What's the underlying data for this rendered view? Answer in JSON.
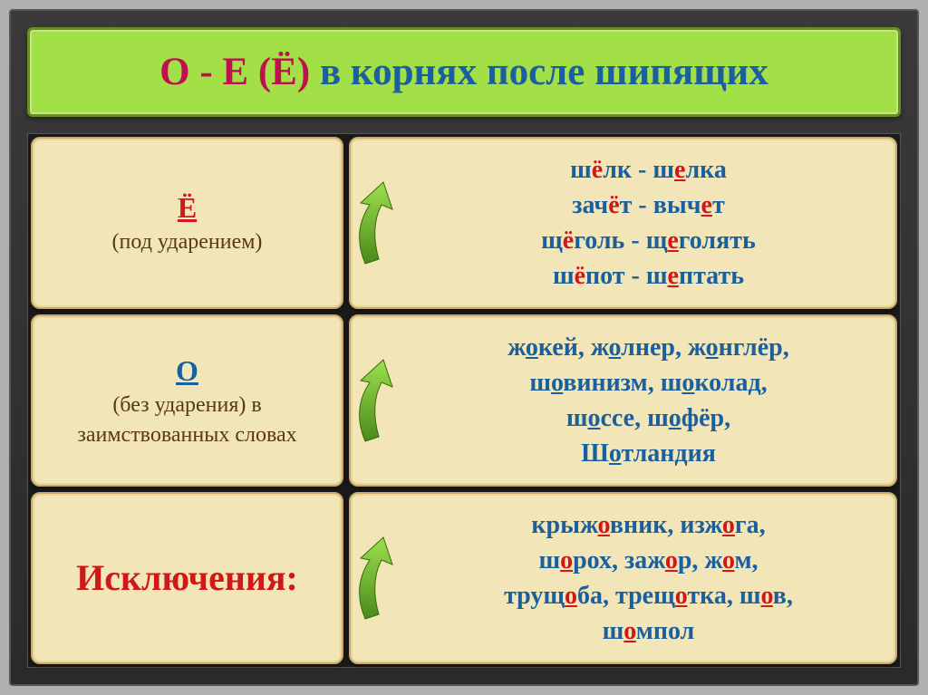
{
  "colors": {
    "frame_bg": "#2f2f2f",
    "title_bg": "#a3e048",
    "title_border": "#6b8e23",
    "cell_bg": "#f2e6b8",
    "cell_border": "#c9a86a",
    "red": "#d01818",
    "blue": "#1a5f9e",
    "brown": "#5a3a0a",
    "arrow_green": "#7cc93e",
    "arrow_dark": "#4a8a1a"
  },
  "title": {
    "part1": "О - Е (Ё)",
    "part2": " в корнях после шипящих"
  },
  "rows": [
    {
      "left_letter": "Ё",
      "left_letter_color": "red",
      "left_desc": "(под ударением)",
      "right_lines": [
        [
          [
            "ш",
            ""
          ],
          [
            "ё",
            "r"
          ],
          [
            "лк - ш",
            ""
          ],
          [
            "е",
            "ru"
          ],
          [
            "лка",
            ""
          ]
        ],
        [
          [
            "зач",
            ""
          ],
          [
            "ё",
            "r"
          ],
          [
            "т - выч",
            ""
          ],
          [
            "е",
            "ru"
          ],
          [
            "т",
            ""
          ]
        ],
        [
          [
            "щ",
            ""
          ],
          [
            "ё",
            "r"
          ],
          [
            "голь - щ",
            ""
          ],
          [
            "е",
            "ru"
          ],
          [
            "голять",
            ""
          ]
        ],
        [
          [
            "ш",
            ""
          ],
          [
            "ё",
            "r"
          ],
          [
            "пот - ш",
            ""
          ],
          [
            "е",
            "ru"
          ],
          [
            "птать",
            ""
          ]
        ]
      ]
    },
    {
      "left_letter": "О",
      "left_letter_color": "blue",
      "left_desc": "(без ударения) в заимствованных словах",
      "right_lines": [
        [
          [
            "ж",
            ""
          ],
          [
            "о",
            "bu"
          ],
          [
            "кей, ж",
            ""
          ],
          [
            "о",
            "bu"
          ],
          [
            "лнер, ж",
            ""
          ],
          [
            "о",
            "bu"
          ],
          [
            "нглёр,",
            ""
          ]
        ],
        [
          [
            "ш",
            ""
          ],
          [
            "о",
            "bu"
          ],
          [
            "винизм, ш",
            ""
          ],
          [
            "о",
            "bu"
          ],
          [
            "колад,",
            ""
          ]
        ],
        [
          [
            "ш",
            ""
          ],
          [
            "о",
            "bu"
          ],
          [
            "ссе, ш",
            ""
          ],
          [
            "о",
            "bu"
          ],
          [
            "фёр,",
            ""
          ]
        ],
        [
          [
            "Ш",
            ""
          ],
          [
            "о",
            "bu"
          ],
          [
            "тландия",
            ""
          ]
        ]
      ]
    },
    {
      "left_exception": "Исключения:",
      "right_lines": [
        [
          [
            "крыж",
            ""
          ],
          [
            "о",
            "ru"
          ],
          [
            "вник, изж",
            ""
          ],
          [
            "о",
            "ru"
          ],
          [
            "га,",
            ""
          ]
        ],
        [
          [
            "ш",
            ""
          ],
          [
            "о",
            "ru"
          ],
          [
            "рох, заж",
            ""
          ],
          [
            "о",
            "ru"
          ],
          [
            "р, ж",
            ""
          ],
          [
            "о",
            "ru"
          ],
          [
            "м,",
            ""
          ]
        ],
        [
          [
            "трущ",
            ""
          ],
          [
            "о",
            "ru"
          ],
          [
            "ба, трещ",
            ""
          ],
          [
            "о",
            "ru"
          ],
          [
            "тка, ш",
            ""
          ],
          [
            "о",
            "ru"
          ],
          [
            "в,",
            ""
          ]
        ],
        [
          [
            "ш",
            ""
          ],
          [
            "о",
            "ru"
          ],
          [
            "мпол",
            ""
          ]
        ]
      ]
    }
  ],
  "typography": {
    "title_fontsize": 43,
    "left_fontsize": 24,
    "left_letter_fontsize": 32,
    "right_fontsize": 28,
    "exception_fontsize": 40
  }
}
